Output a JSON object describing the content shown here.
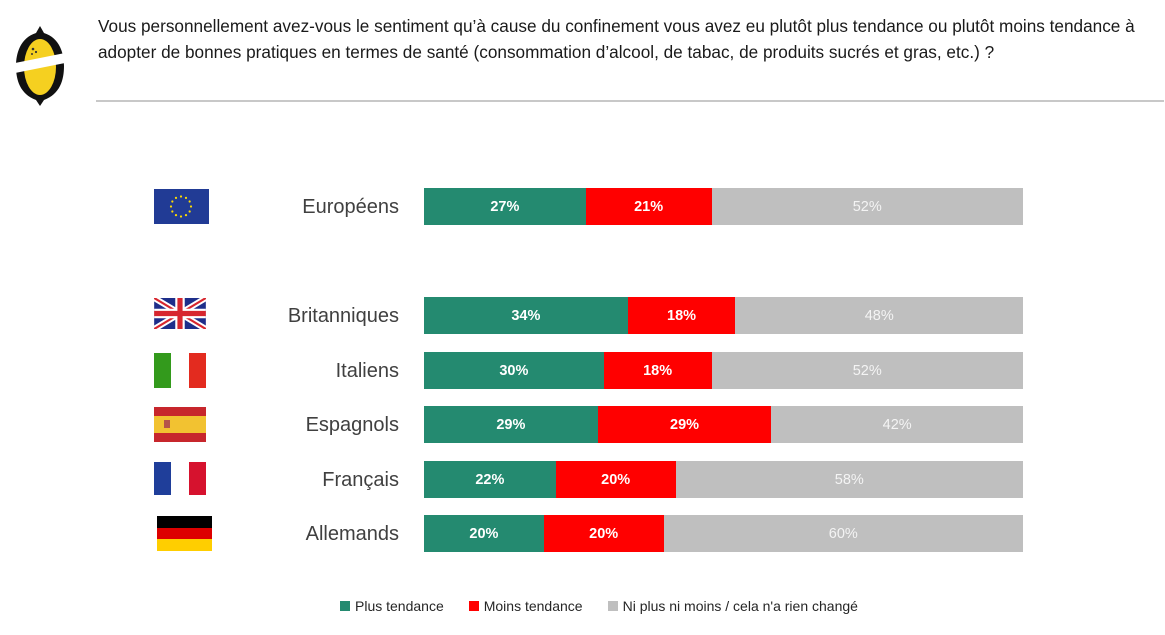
{
  "header": {
    "question": "Vous personnellement avez-vous le sentiment qu’à cause du confinement vous avez eu plutôt plus tendance ou plutôt moins tendance à adopter de bonnes pratiques en termes de santé (consommation d’alcool, de tabac, de produits sucrés et gras, etc.) ?",
    "logo_icon": "lemon-logo-icon"
  },
  "colors": {
    "plus": "#248A70",
    "moins": "#FF0000",
    "neutre": "#BFBFBF"
  },
  "chart_data": {
    "type": "bar",
    "orientation": "horizontal",
    "stacked": true,
    "normalized": true,
    "title": "Vous personnellement avez-vous le sentiment qu’à cause du confinement vous avez eu plutôt plus tendance ou plutôt moins tendance à adopter de bonnes pratiques en termes de santé (consommation d’alcool, de tabac, de produits sucrés et gras, etc.) ?",
    "xlabel": "",
    "ylabel": "",
    "xlim": [
      0,
      100
    ],
    "grid": false,
    "legend_position": "bottom",
    "categories": [
      "Européens",
      "Britanniques",
      "Italiens",
      "Espagnols",
      "Français",
      "Allemands"
    ],
    "flags": [
      "eu-flag-icon",
      "uk-flag-icon",
      "italy-flag-icon",
      "spain-flag-icon",
      "france-flag-icon",
      "germany-flag-icon"
    ],
    "series": [
      {
        "name": "Plus tendance",
        "key": "plus",
        "values": [
          27,
          34,
          30,
          29,
          22,
          20
        ]
      },
      {
        "name": "Moins tendance",
        "key": "moins",
        "values": [
          21,
          18,
          18,
          29,
          20,
          20
        ]
      },
      {
        "name": "Ni plus ni moins / cela n'a rien changé",
        "key": "neutre",
        "values": [
          52,
          48,
          52,
          42,
          58,
          60
        ]
      }
    ],
    "data_labels": [
      [
        "27%",
        "21%",
        "52%"
      ],
      [
        "34%",
        "18%",
        "48%"
      ],
      [
        "30%",
        "18%",
        "52%"
      ],
      [
        "29%",
        "29%",
        "42%"
      ],
      [
        "22%",
        "20%",
        "58%"
      ],
      [
        "20%",
        "20%",
        "60%"
      ]
    ]
  },
  "legend": [
    {
      "label": "Plus tendance",
      "key": "plus"
    },
    {
      "label": "Moins tendance",
      "key": "moins"
    },
    {
      "label": "Ni plus ni moins / cela n'a rien changé",
      "key": "neutre"
    }
  ]
}
